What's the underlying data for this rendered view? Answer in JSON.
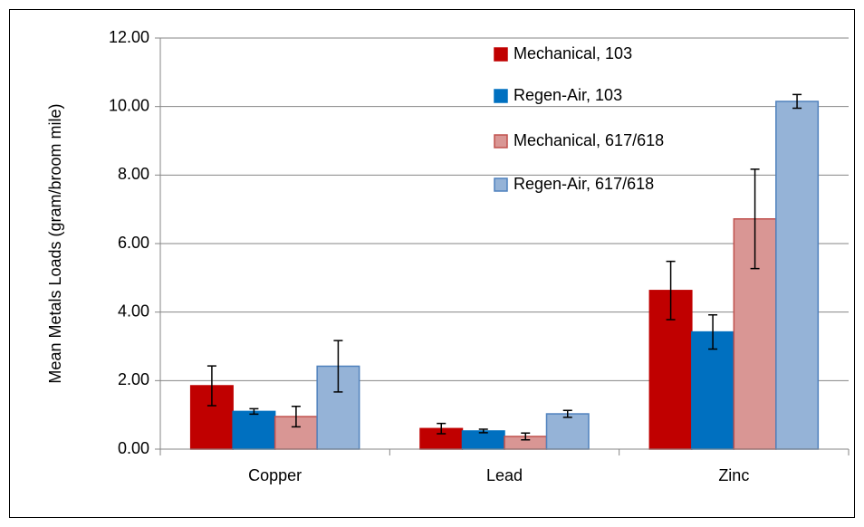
{
  "chart_data": {
    "type": "bar",
    "y_label": "Mean Metals Loads (gram/broom mile)",
    "categories": [
      "Copper",
      "Lead",
      "Zinc"
    ],
    "series": [
      {
        "name": "Mechanical, 103",
        "color": "#c00000",
        "border": "#c00000",
        "values": [
          1.85,
          0.6,
          4.63
        ],
        "errors": [
          0.58,
          0.15,
          0.85
        ]
      },
      {
        "name": "Regen-Air, 103",
        "color": "#0070c0",
        "border": "#0070c0",
        "values": [
          1.1,
          0.53,
          3.42
        ],
        "errors": [
          0.08,
          0.05,
          0.5
        ]
      },
      {
        "name": "Mechanical, 617/618",
        "color": "#d99694",
        "border": "#c0504d",
        "values": [
          0.95,
          0.37,
          6.72
        ],
        "errors": [
          0.3,
          0.1,
          1.45
        ]
      },
      {
        "name": "Regen-Air, 617/618",
        "color": "#95b3d7",
        "border": "#4f81bd",
        "values": [
          2.42,
          1.03,
          10.15
        ],
        "errors": [
          0.75,
          0.1,
          0.2
        ]
      }
    ],
    "ylim": [
      0,
      12
    ],
    "yticks": [
      {
        "value": 0,
        "label": "0.00"
      },
      {
        "value": 2,
        "label": "2.00"
      },
      {
        "value": 4,
        "label": "4.00"
      },
      {
        "value": 6,
        "label": "6.00"
      },
      {
        "value": 8,
        "label": "8.00"
      },
      {
        "value": 10,
        "label": "10.00"
      },
      {
        "value": 12,
        "label": "12.00"
      }
    ],
    "grid": true
  }
}
